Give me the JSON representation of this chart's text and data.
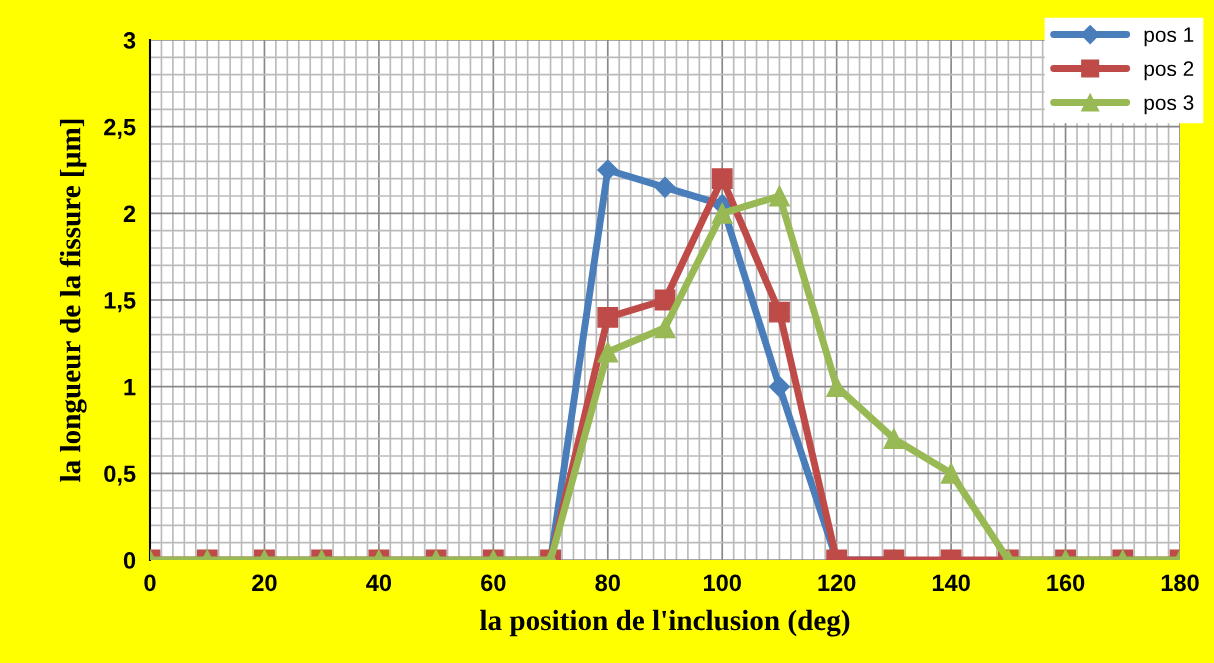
{
  "chart_data": {
    "type": "line",
    "xlabel": "la position de l'inclusion (deg)",
    "ylabel": "la longueur de la fissure [µm]",
    "x": [
      0,
      10,
      20,
      30,
      40,
      50,
      60,
      70,
      80,
      90,
      100,
      110,
      120,
      130,
      140,
      150,
      160,
      170,
      180
    ],
    "series": [
      {
        "name": "pos 1",
        "color": "#4a7ebb",
        "marker": "diamond",
        "values": [
          null,
          null,
          null,
          null,
          null,
          null,
          null,
          0,
          2.25,
          2.15,
          2.05,
          1.0,
          0,
          0,
          null,
          null,
          null,
          null,
          null
        ]
      },
      {
        "name": "pos 2",
        "color": "#be4b48",
        "marker": "square",
        "values": [
          0,
          0,
          0,
          0,
          0,
          0,
          0,
          0,
          1.4,
          1.5,
          2.2,
          1.43,
          0,
          0,
          0,
          0,
          0,
          0,
          0
        ]
      },
      {
        "name": "pos 3",
        "color": "#98b954",
        "marker": "triangle",
        "values": [
          0,
          0,
          0,
          0,
          0,
          0,
          0,
          0,
          1.2,
          1.34,
          2.0,
          2.1,
          1.0,
          0.7,
          0.5,
          0,
          0,
          0,
          0
        ]
      }
    ],
    "xlim": [
      0,
      180
    ],
    "xticks": [
      0,
      20,
      40,
      60,
      80,
      100,
      120,
      140,
      160,
      180
    ],
    "ylim": [
      0,
      3
    ],
    "yticks": [
      0,
      {
        "value": 0.5,
        "label": "0,5"
      },
      1,
      {
        "value": 1.5,
        "label": "1,5"
      },
      2,
      {
        "value": 2.5,
        "label": "2,5"
      },
      3
    ],
    "grid": true,
    "legend": "top right",
    "line_style": "solid"
  }
}
